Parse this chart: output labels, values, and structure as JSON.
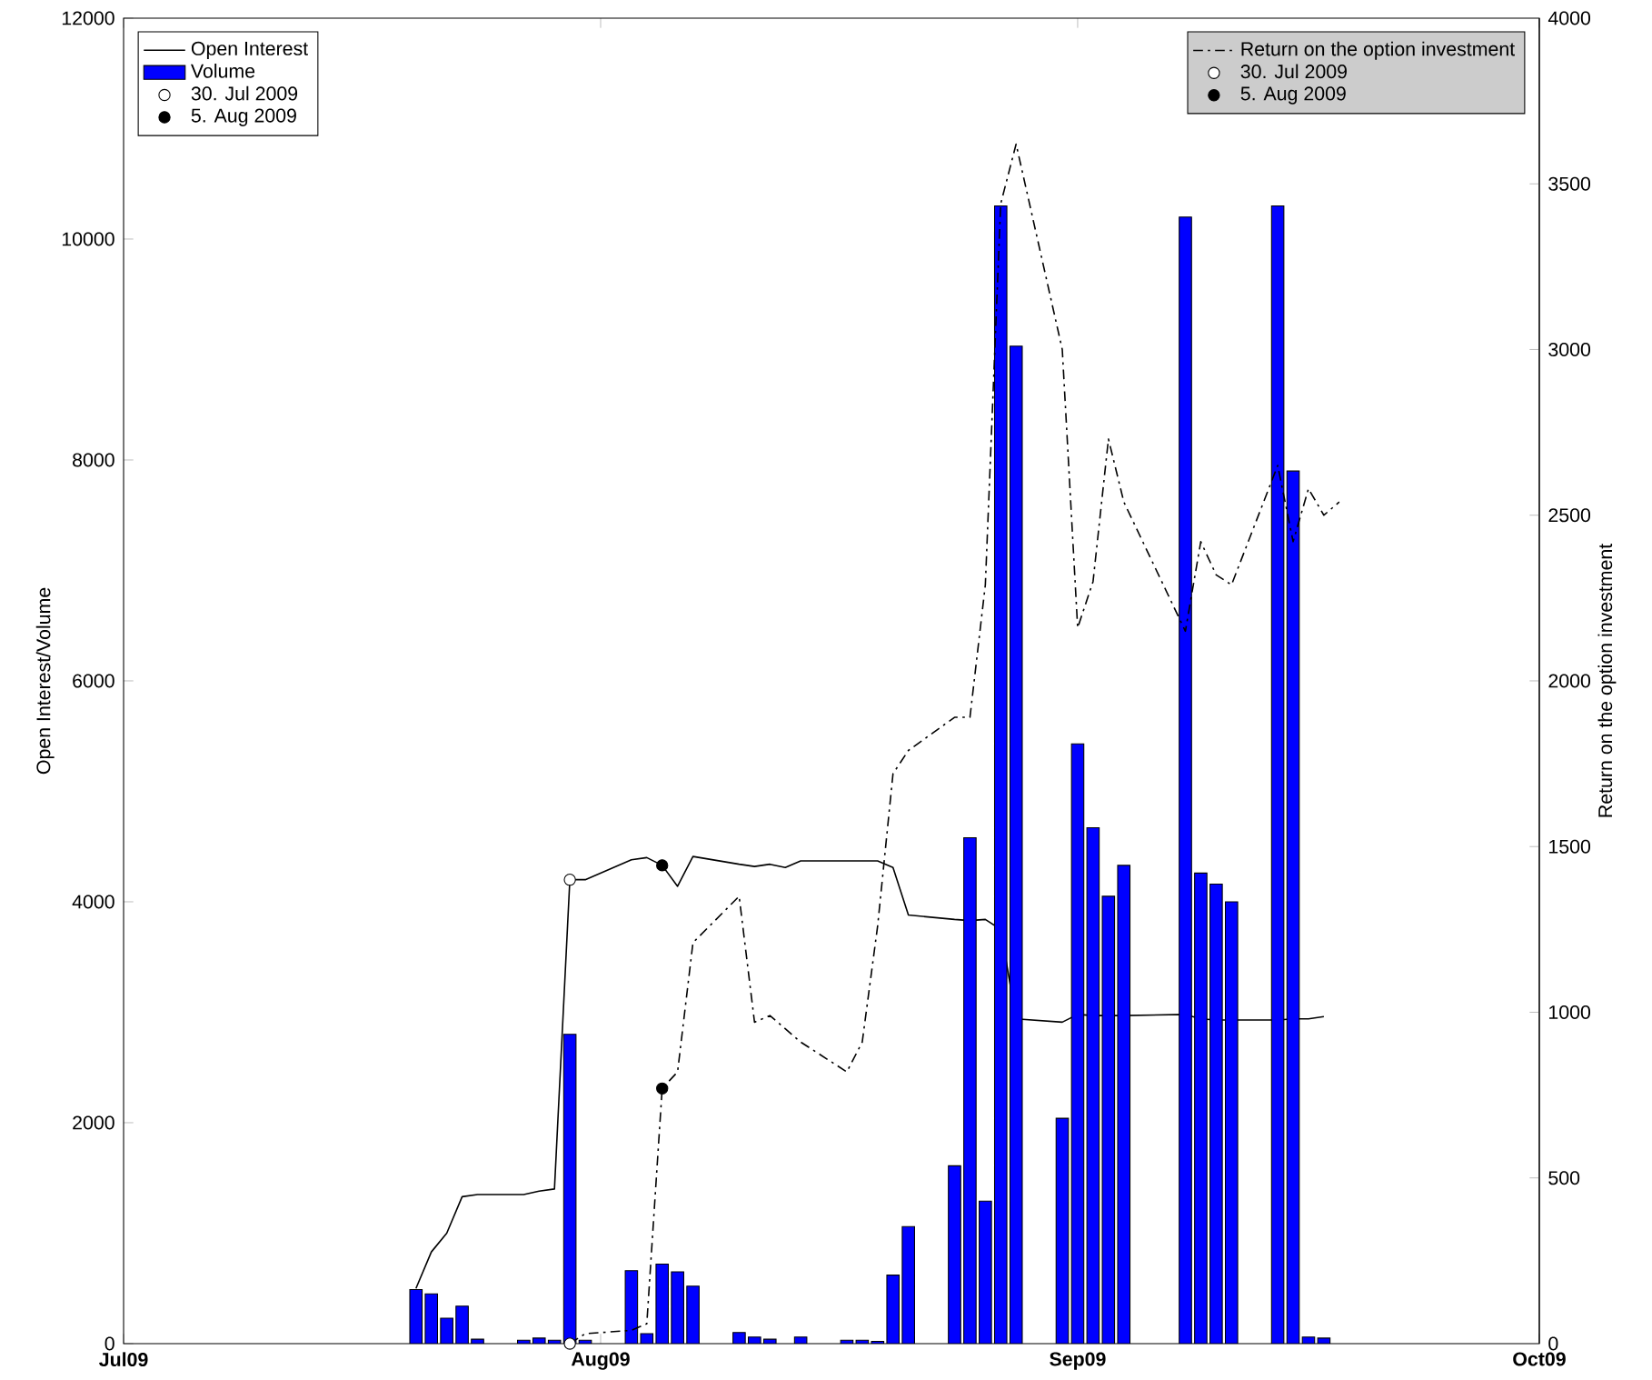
{
  "chart_data": {
    "type": "bar",
    "xlabel": null,
    "ylabel": "Open Interest/Volume",
    "y2label": "Return on the option investment",
    "xlim": [
      "2009-07-01",
      "2009-10-01"
    ],
    "xticks": [
      {
        "value": "2009-07-01",
        "label": "Jul09"
      },
      {
        "value": "2009-08-01",
        "label": "Aug09"
      },
      {
        "value": "2009-09-01",
        "label": "Sep09"
      },
      {
        "value": "2009-10-01",
        "label": "Oct09"
      }
    ],
    "ylim": [
      0,
      12000
    ],
    "yticks": [
      0,
      2000,
      4000,
      6000,
      8000,
      10000,
      12000
    ],
    "y2lim": [
      0,
      4000
    ],
    "y2ticks": [
      0,
      500,
      1000,
      1500,
      2000,
      2500,
      3000,
      3500,
      4000
    ],
    "legend": "top left",
    "grid": false,
    "series": [
      {
        "name": "Open Interest",
        "type": "line",
        "color": "#000000",
        "line_style": "solid",
        "x": [
          "2009-07-20",
          "2009-07-21",
          "2009-07-22",
          "2009-07-23",
          "2009-07-24",
          "2009-07-27",
          "2009-07-28",
          "2009-07-29",
          "2009-07-30",
          "2009-07-31",
          "2009-08-03",
          "2009-08-04",
          "2009-08-05",
          "2009-08-06",
          "2009-08-07",
          "2009-08-10",
          "2009-08-11",
          "2009-08-12",
          "2009-08-13",
          "2009-08-14",
          "2009-08-17",
          "2009-08-18",
          "2009-08-19",
          "2009-08-20",
          "2009-08-21",
          "2009-08-24",
          "2009-08-25",
          "2009-08-26",
          "2009-08-27",
          "2009-08-28",
          "2009-08-31",
          "2009-09-01",
          "2009-09-02",
          "2009-09-03",
          "2009-09-04",
          "2009-09-08",
          "2009-09-09",
          "2009-09-10",
          "2009-09-11",
          "2009-09-14",
          "2009-09-15",
          "2009-09-16",
          "2009-09-17"
        ],
        "values": [
          500,
          830,
          1000,
          1330,
          1350,
          1350,
          1380,
          1400,
          4200,
          4200,
          4380,
          4400,
          4330,
          4140,
          4410,
          4340,
          4320,
          4340,
          4310,
          4370,
          4370,
          4370,
          4370,
          4310,
          3880,
          3840,
          3830,
          3840,
          3750,
          2940,
          2910,
          2980,
          2970,
          2970,
          2970,
          2980,
          2940,
          2930,
          2930,
          2930,
          2940,
          2940,
          2960
        ]
      },
      {
        "name": "Volume",
        "color": "#0000ff",
        "x": [
          "2009-07-20",
          "2009-07-21",
          "2009-07-22",
          "2009-07-23",
          "2009-07-24",
          "2009-07-27",
          "2009-07-28",
          "2009-07-29",
          "2009-07-30",
          "2009-07-31",
          "2009-08-03",
          "2009-08-04",
          "2009-08-05",
          "2009-08-06",
          "2009-08-07",
          "2009-08-10",
          "2009-08-11",
          "2009-08-12",
          "2009-08-14",
          "2009-08-17",
          "2009-08-18",
          "2009-08-19",
          "2009-08-20",
          "2009-08-21",
          "2009-08-24",
          "2009-08-25",
          "2009-08-26",
          "2009-08-27",
          "2009-08-28",
          "2009-08-31",
          "2009-09-01",
          "2009-09-02",
          "2009-09-03",
          "2009-09-04",
          "2009-09-08",
          "2009-09-09",
          "2009-09-10",
          "2009-09-11",
          "2009-09-14",
          "2009-09-15",
          "2009-09-16",
          "2009-09-17"
        ],
        "values": [
          490,
          450,
          230,
          340,
          40,
          30,
          50,
          30,
          2800,
          30,
          660,
          90,
          720,
          650,
          520,
          100,
          60,
          40,
          60,
          30,
          30,
          20,
          620,
          1060,
          1610,
          4580,
          1290,
          10300,
          9030,
          2040,
          5430,
          4670,
          4050,
          4330,
          10200,
          4260,
          4160,
          4000,
          10300,
          7900,
          60,
          50
        ]
      },
      {
        "name": "30. Jul 2009",
        "type": "scatter",
        "marker": "circle",
        "color": "#ffffff",
        "x": [
          "2009-07-30"
        ],
        "values": [
          4200
        ]
      },
      {
        "name": "5. Aug 2009",
        "type": "scatter",
        "marker": "circle",
        "color": "#000000",
        "x": [
          "2009-08-05"
        ],
        "values": [
          4330
        ]
      },
      {
        "name": "Return on the option investment",
        "type": "line",
        "axis": "y2",
        "color": "#000000",
        "line_style": "dashdot",
        "x": [
          "2009-07-30",
          "2009-07-31",
          "2009-08-03",
          "2009-08-04",
          "2009-08-05",
          "2009-08-06",
          "2009-08-07",
          "2009-08-10",
          "2009-08-11",
          "2009-08-12",
          "2009-08-13",
          "2009-08-14",
          "2009-08-17",
          "2009-08-18",
          "2009-08-19",
          "2009-08-20",
          "2009-08-21",
          "2009-08-24",
          "2009-08-25",
          "2009-08-26",
          "2009-08-27",
          "2009-08-28",
          "2009-08-31",
          "2009-09-01",
          "2009-09-02",
          "2009-09-03",
          "2009-09-04",
          "2009-09-08",
          "2009-09-09",
          "2009-09-10",
          "2009-09-11",
          "2009-09-14",
          "2009-09-15",
          "2009-09-16",
          "2009-09-17",
          "2009-09-18"
        ],
        "values": [
          0,
          30,
          40,
          60,
          770,
          820,
          1210,
          1350,
          970,
          990,
          950,
          910,
          820,
          910,
          1260,
          1720,
          1790,
          1890,
          1890,
          2290,
          3440,
          3620,
          3000,
          2160,
          2300,
          2730,
          2540,
          2150,
          2420,
          2320,
          2290,
          2650,
          2420,
          2580,
          2500,
          2540
        ]
      },
      {
        "name": "30. Jul 2009",
        "type": "scatter",
        "axis": "y2",
        "marker": "circle",
        "color": "#ffffff",
        "x": [
          "2009-07-30"
        ],
        "values": [
          0
        ]
      },
      {
        "name": "5. Aug 2009",
        "type": "scatter",
        "axis": "y2",
        "marker": "circle",
        "color": "#000000",
        "x": [
          "2009-08-05"
        ],
        "values": [
          770
        ]
      }
    ]
  }
}
